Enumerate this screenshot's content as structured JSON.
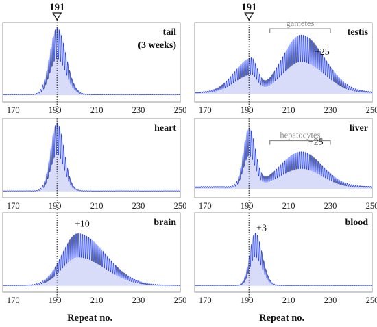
{
  "figure": {
    "marker_label": "191",
    "x_label": "Repeat no."
  },
  "chart_data": [
    {
      "id": "tail",
      "type": "line",
      "title_lines": [
        "tail",
        "(3 weeks)"
      ],
      "xlim": [
        165,
        250
      ],
      "x_ticks": [
        170,
        190,
        210,
        230,
        250
      ],
      "reference_line_x": 191,
      "series_color": "#2c45d8",
      "fill_color": "#b8bff2",
      "peaks": [
        {
          "center": 191,
          "height": 0.95,
          "sigma_left": 3.4,
          "sigma_right": 4.2
        }
      ],
      "baseline": 0.03,
      "annotations": [],
      "bracket": null
    },
    {
      "id": "testis",
      "type": "line",
      "title_lines": [
        "testis"
      ],
      "xlim": [
        165,
        250
      ],
      "x_ticks": [
        170,
        190,
        210,
        230,
        250
      ],
      "reference_line_x": 191,
      "series_color": "#2c45d8",
      "fill_color": "#b8bff2",
      "peaks": [
        {
          "center": 192,
          "height": 0.47,
          "sigma_left": 8,
          "sigma_right": 3
        },
        {
          "center": 216,
          "height": 0.82,
          "sigma_left": 9,
          "sigma_right": 11
        }
      ],
      "baseline": 0.06,
      "annotations": [
        {
          "text": "+25",
          "x": 226,
          "y": 0.6
        }
      ],
      "bracket": {
        "label": "gametes",
        "x1": 201,
        "x2": 230,
        "y": 0.97
      }
    },
    {
      "id": "heart",
      "type": "line",
      "title_lines": [
        "heart"
      ],
      "xlim": [
        165,
        250
      ],
      "x_ticks": [
        170,
        190,
        210,
        230,
        250
      ],
      "reference_line_x": 191,
      "series_color": "#2c45d8",
      "fill_color": "#b8bff2",
      "peaks": [
        {
          "center": 191,
          "height": 0.97,
          "sigma_left": 3.0,
          "sigma_right": 3.4
        }
      ],
      "baseline": 0.02,
      "annotations": [],
      "bracket": null
    },
    {
      "id": "liver",
      "type": "line",
      "title_lines": [
        "liver"
      ],
      "xlim": [
        165,
        250
      ],
      "x_ticks": [
        170,
        190,
        210,
        230,
        250
      ],
      "reference_line_x": 191,
      "series_color": "#2c45d8",
      "fill_color": "#b8bff2",
      "peaks": [
        {
          "center": 191,
          "height": 0.82,
          "sigma_left": 2.6,
          "sigma_right": 3.0
        },
        {
          "center": 216,
          "height": 0.5,
          "sigma_left": 10,
          "sigma_right": 10
        }
      ],
      "baseline": 0.08,
      "annotations": [
        {
          "text": "+25",
          "x": 223,
          "y": 0.68
        }
      ],
      "bracket": {
        "label": "hepatocytes",
        "x1": 201,
        "x2": 230,
        "y": 0.74
      }
    },
    {
      "id": "brain",
      "type": "line",
      "title_lines": [
        "brain"
      ],
      "xlim": [
        165,
        250
      ],
      "x_ticks": [
        170,
        190,
        210,
        230,
        250
      ],
      "reference_line_x": 191,
      "series_color": "#2c45d8",
      "fill_color": "#b8bff2",
      "peaks": [
        {
          "center": 201,
          "height": 0.74,
          "sigma_left": 7.5,
          "sigma_right": 13
        }
      ],
      "baseline": 0.02,
      "annotations": [
        {
          "text": "+10",
          "x": 203,
          "y": 0.86
        }
      ],
      "bracket": null
    },
    {
      "id": "blood",
      "type": "line",
      "title_lines": [
        "blood"
      ],
      "xlim": [
        165,
        250
      ],
      "x_ticks": [
        170,
        190,
        210,
        230,
        250
      ],
      "reference_line_x": 191,
      "series_color": "#2c45d8",
      "fill_color": "#b8bff2",
      "peaks": [
        {
          "center": 194,
          "height": 0.75,
          "sigma_left": 2.6,
          "sigma_right": 3.3
        }
      ],
      "baseline": 0.02,
      "annotations": [
        {
          "text": "+3",
          "x": 197,
          "y": 0.8
        }
      ],
      "bracket": null
    }
  ]
}
